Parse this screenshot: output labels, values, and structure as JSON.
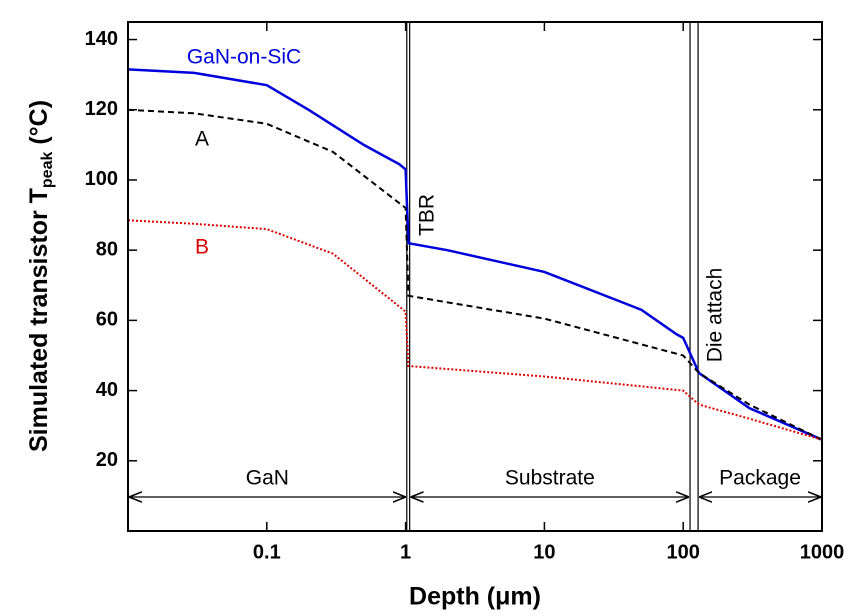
{
  "chart_data": {
    "type": "line",
    "xlabel": "Depth (μm)",
    "ylabel": [
      "Simulated transistor T",
      "peak",
      " (°C)"
    ],
    "xscale": "log",
    "xlim": [
      0.01,
      1000
    ],
    "ylim": [
      0,
      145
    ],
    "xticks": [
      0.1,
      1,
      10,
      100,
      1000
    ],
    "yticks": [
      20,
      40,
      60,
      80,
      100,
      120,
      140
    ],
    "series": [
      {
        "name": "GaN-on-SiC",
        "color": "#0000dd",
        "style": "solid",
        "x": [
          0.01,
          0.03,
          0.1,
          0.2,
          0.5,
          0.9,
          1.0,
          1.05,
          2,
          10,
          50,
          90,
          100,
          130,
          300,
          1000
        ],
        "values": [
          131.5,
          130.5,
          127,
          120,
          110,
          104.5,
          103,
          82,
          80,
          73.8,
          63,
          56,
          55,
          45,
          35,
          26
        ]
      },
      {
        "name": "A",
        "color": "#000000",
        "style": "dashed",
        "x": [
          0.01,
          0.03,
          0.1,
          0.3,
          1.0,
          1.05,
          10,
          100,
          130,
          300,
          1000
        ],
        "values": [
          120,
          119,
          116,
          108,
          92,
          67,
          60.5,
          50,
          45,
          36,
          26
        ]
      },
      {
        "name": "B",
        "color": "#dd0000",
        "style": "dotted",
        "x": [
          0.01,
          0.03,
          0.1,
          0.3,
          1.0,
          1.05,
          10,
          100,
          130,
          300,
          1000
        ],
        "values": [
          88.5,
          87.5,
          86,
          79,
          62.5,
          47,
          44,
          40,
          36,
          32,
          26
        ]
      }
    ],
    "interfaces": [
      {
        "label": "TBR",
        "x": [
          1.02,
          1.07
        ]
      },
      {
        "label": "Die attach",
        "x": [
          112,
          128
        ]
      }
    ],
    "regions": [
      {
        "label": "GaN",
        "x": [
          0.01,
          1.02
        ]
      },
      {
        "label": "Substrate",
        "x": [
          1.07,
          112
        ]
      },
      {
        "label": "Package",
        "x": [
          128,
          1000
        ]
      }
    ]
  }
}
